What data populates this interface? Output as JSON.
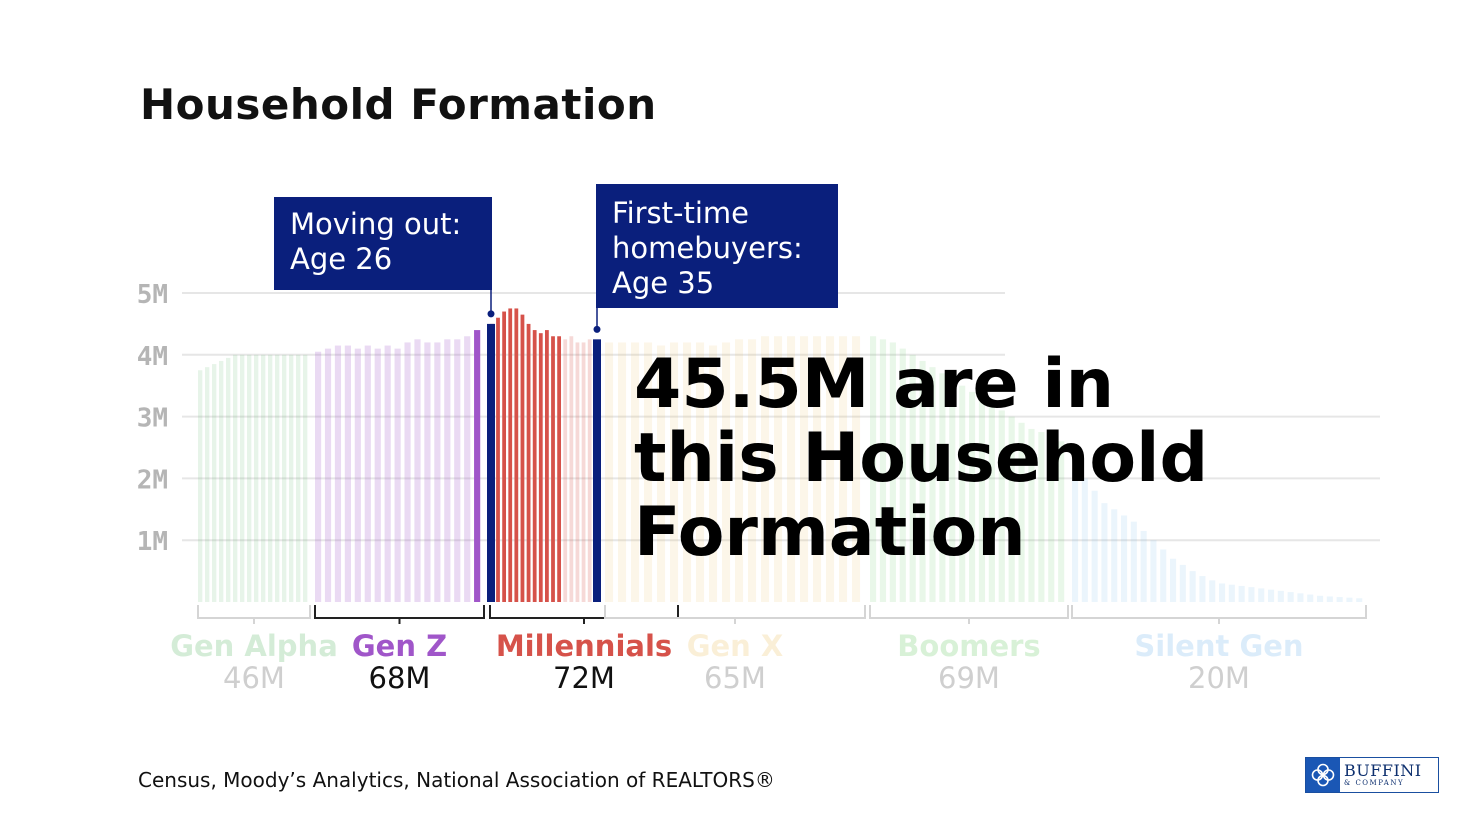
{
  "chart_data": {
    "type": "bar",
    "title": "Household Formation",
    "yticks": [
      "5M",
      "4M",
      "3M",
      "2M",
      "1M"
    ],
    "ytick_values": [
      5,
      4,
      3,
      2,
      1
    ],
    "ylim": [
      0,
      5
    ],
    "grid": true,
    "generations": [
      {
        "name": "Gen Alpha",
        "total": "46M",
        "color": "#3aa84a",
        "highlight": false,
        "values": [
          3.75,
          3.8,
          3.85,
          3.9,
          3.95,
          4.0,
          4.0,
          4.0,
          4.0,
          4.0,
          4.0,
          4.0,
          4.0,
          4.0,
          4.0,
          4.0
        ]
      },
      {
        "name": "Gen Z",
        "total": "68M",
        "color": "#a056c9",
        "highlight": true,
        "values": [
          4.05,
          4.1,
          4.15,
          4.15,
          4.1,
          4.15,
          4.1,
          4.15,
          4.1,
          4.2,
          4.25,
          4.2,
          4.2,
          4.25,
          4.25,
          4.3,
          4.4
        ]
      },
      {
        "name": "Millennials",
        "total": "72M",
        "color": "#d6524a",
        "highlight": true,
        "values": [
          4.5,
          4.6,
          4.7,
          4.75,
          4.75,
          4.65,
          4.5,
          4.4,
          4.35,
          4.4,
          4.3,
          4.3,
          4.25,
          4.3,
          4.2,
          4.2,
          4.25,
          4.2
        ]
      },
      {
        "name": "Gen X",
        "total": "65M",
        "color": "#e9b64a",
        "highlight": false,
        "values": [
          4.2,
          4.2,
          4.2,
          4.2,
          4.15,
          4.2,
          4.2,
          4.2,
          4.15,
          4.2,
          4.25,
          4.25,
          4.3,
          4.3,
          4.3,
          4.3,
          4.3,
          4.3,
          4.3,
          4.3
        ]
      },
      {
        "name": "Boomers",
        "total": "69M",
        "color": "#4cbd4a",
        "highlight": false,
        "values": [
          4.3,
          4.25,
          4.2,
          4.1,
          4.0,
          3.9,
          3.8,
          3.7,
          3.6,
          3.5,
          3.4,
          3.3,
          3.2,
          3.1,
          3.0,
          2.9,
          2.8,
          2.75,
          2.7,
          2.6
        ]
      },
      {
        "name": "Silent Gen",
        "total": "20M",
        "color": "#5aa9e6",
        "highlight": false,
        "values": [
          2.1,
          2.0,
          1.8,
          1.6,
          1.5,
          1.4,
          1.3,
          1.15,
          1.0,
          0.85,
          0.7,
          0.6,
          0.5,
          0.42,
          0.35,
          0.3,
          0.28,
          0.26,
          0.24,
          0.22,
          0.2,
          0.18,
          0.16,
          0.14,
          0.12,
          0.1,
          0.09,
          0.08,
          0.07,
          0.06
        ]
      }
    ],
    "markers": [
      {
        "label": "Moving out: Age 26",
        "text_lines": [
          "Moving out:",
          "Age 26"
        ],
        "age": 26
      },
      {
        "label": "First-time homebuyers: Age 35",
        "text_lines": [
          "First-time",
          "homebuyers:",
          "Age 35"
        ],
        "age": 35
      }
    ]
  },
  "header": {
    "title": "Household Formation"
  },
  "callouts": {
    "moving_out": {
      "line1": "Moving out:",
      "line2": "Age 26"
    },
    "first_time": {
      "line1": "First-time",
      "line2": "homebuyers:",
      "line3": "Age 35"
    }
  },
  "big_stat": {
    "number": "45.5M",
    "rest1": " are in",
    "line2": "this Household",
    "line3": "Formation"
  },
  "footer": {
    "source": "Census, Moody’s Analytics, National Association of REALTORS®"
  },
  "logo": {
    "word1": "BUFFINI",
    "word2": "& COMPANY",
    "mark_color": "#1a57b5"
  }
}
